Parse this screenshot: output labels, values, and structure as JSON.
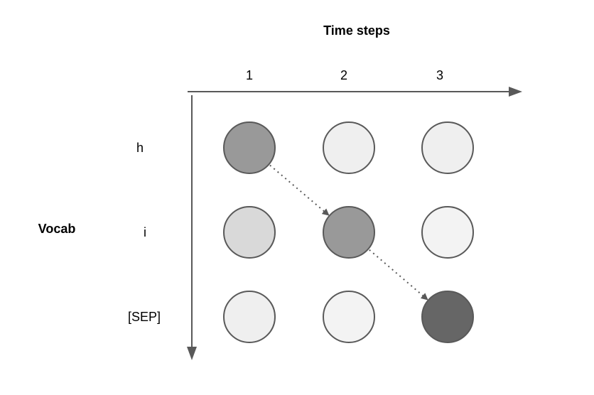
{
  "x_axis": {
    "title": "Time steps",
    "labels": [
      "1",
      "2",
      "3"
    ]
  },
  "y_axis": {
    "title": "Vocab",
    "labels": [
      "h",
      "i",
      "[SEP]"
    ]
  },
  "colors": {
    "axis": "#595959",
    "node_stroke": "#595959",
    "arrow": "#595959",
    "darkest": "#666666",
    "dark": "#999999",
    "medium": "#d9d9d9",
    "light": "#efefef",
    "lighter": "#f3f3f3"
  },
  "nodes": [
    {
      "vocab": "h",
      "step": "1",
      "shade": "dark"
    },
    {
      "vocab": "h",
      "step": "2",
      "shade": "light"
    },
    {
      "vocab": "h",
      "step": "3",
      "shade": "light"
    },
    {
      "vocab": "i",
      "step": "1",
      "shade": "medium"
    },
    {
      "vocab": "i",
      "step": "2",
      "shade": "dark"
    },
    {
      "vocab": "i",
      "step": "3",
      "shade": "lighter"
    },
    {
      "vocab": "[SEP]",
      "step": "1",
      "shade": "light"
    },
    {
      "vocab": "[SEP]",
      "step": "2",
      "shade": "lighter"
    },
    {
      "vocab": "[SEP]",
      "step": "3",
      "shade": "darkest"
    }
  ],
  "path": [
    {
      "from": {
        "vocab": "h",
        "step": "1"
      },
      "to": {
        "vocab": "i",
        "step": "2"
      },
      "style": "dotted"
    },
    {
      "from": {
        "vocab": "i",
        "step": "2"
      },
      "to": {
        "vocab": "[SEP]",
        "step": "3"
      },
      "style": "dotted"
    }
  ]
}
